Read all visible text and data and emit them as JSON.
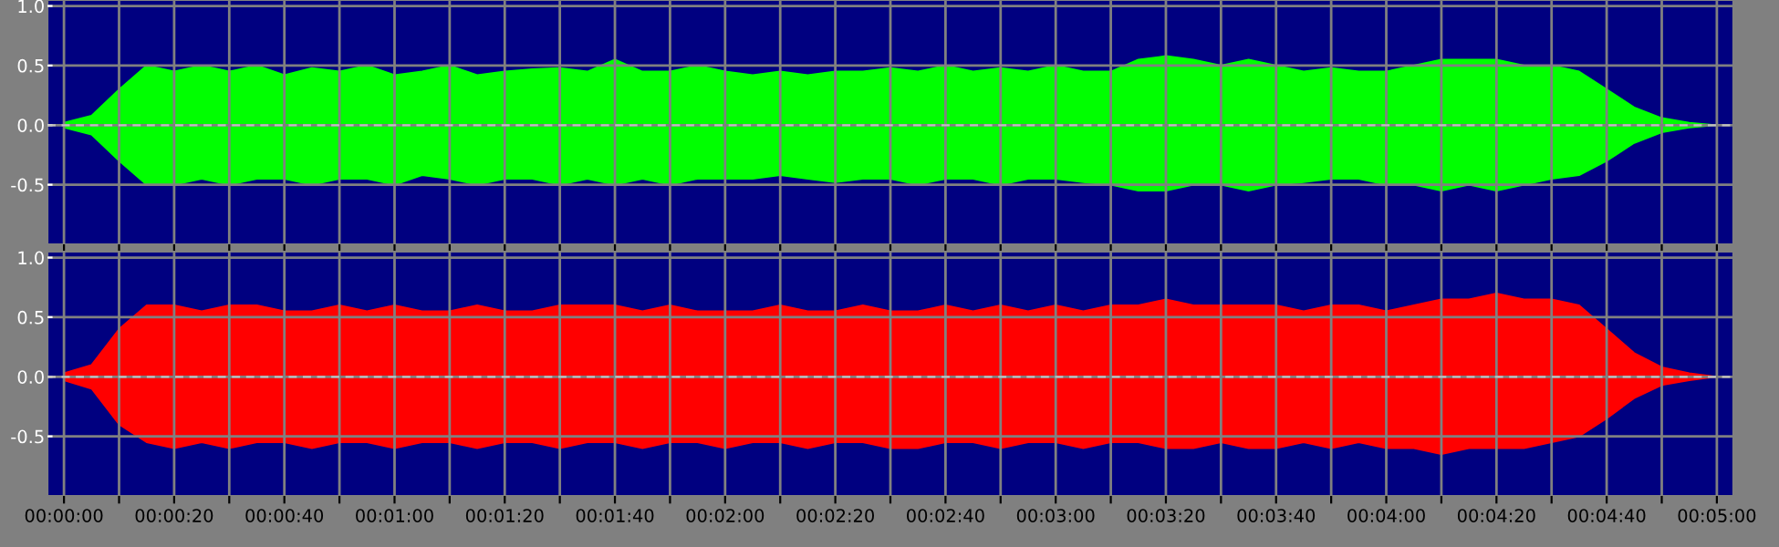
{
  "chart_data": [
    {
      "type": "area",
      "x": [
        0,
        5,
        10,
        15,
        20,
        25,
        30,
        35,
        40,
        45,
        50,
        55,
        60,
        65,
        70,
        75,
        80,
        85,
        90,
        95,
        100,
        105,
        110,
        115,
        120,
        125,
        130,
        135,
        140,
        145,
        150,
        155,
        160,
        165,
        170,
        175,
        180,
        185,
        190,
        195,
        200,
        205,
        210,
        215,
        220,
        225,
        230,
        235,
        240,
        245,
        250,
        255,
        260,
        265,
        270,
        275,
        280,
        285,
        290,
        295,
        300
      ],
      "series": [
        {
          "color": "#00ff00",
          "values": [
            0.02,
            0.08,
            0.3,
            0.5,
            0.45,
            0.5,
            0.45,
            0.5,
            0.42,
            0.48,
            0.45,
            0.5,
            0.42,
            0.45,
            0.5,
            0.42,
            0.45,
            0.47,
            0.48,
            0.45,
            0.55,
            0.45,
            0.45,
            0.5,
            0.45,
            0.42,
            0.45,
            0.42,
            0.45,
            0.45,
            0.48,
            0.45,
            0.5,
            0.45,
            0.48,
            0.45,
            0.5,
            0.45,
            0.45,
            0.55,
            0.58,
            0.55,
            0.5,
            0.55,
            0.5,
            0.45,
            0.48,
            0.45,
            0.45,
            0.5,
            0.55,
            0.55,
            0.55,
            0.5,
            0.5,
            0.45,
            0.3,
            0.15,
            0.06,
            0.02,
            0.0
          ]
        },
        {
          "color": "#00ff00",
          "values": [
            -0.02,
            -0.08,
            -0.3,
            -0.5,
            -0.5,
            -0.45,
            -0.5,
            -0.45,
            -0.45,
            -0.5,
            -0.45,
            -0.45,
            -0.5,
            -0.42,
            -0.45,
            -0.5,
            -0.45,
            -0.45,
            -0.5,
            -0.45,
            -0.5,
            -0.45,
            -0.5,
            -0.45,
            -0.45,
            -0.45,
            -0.42,
            -0.45,
            -0.48,
            -0.45,
            -0.45,
            -0.5,
            -0.45,
            -0.45,
            -0.5,
            -0.45,
            -0.45,
            -0.48,
            -0.5,
            -0.55,
            -0.55,
            -0.5,
            -0.5,
            -0.55,
            -0.5,
            -0.48,
            -0.45,
            -0.45,
            -0.5,
            -0.5,
            -0.55,
            -0.5,
            -0.55,
            -0.5,
            -0.45,
            -0.42,
            -0.3,
            -0.15,
            -0.06,
            -0.02,
            0.0
          ]
        }
      ],
      "xlim": [
        -3,
        303
      ],
      "ylim": [
        -1.0,
        1.05
      ],
      "yticks": [
        {
          "value": -0.5,
          "label": "-0.5"
        },
        {
          "value": 0,
          "label": "0.0"
        },
        {
          "value": 0.5,
          "label": "0.5"
        },
        {
          "value": 1,
          "label": "1.0"
        }
      ],
      "xticks": [
        {
          "value": 0,
          "label": null
        },
        {
          "value": 10,
          "label": null
        },
        {
          "value": 20,
          "label": null
        },
        {
          "value": 30,
          "label": null
        },
        {
          "value": 40,
          "label": null
        },
        {
          "value": 50,
          "label": null
        },
        {
          "value": 60,
          "label": null
        },
        {
          "value": 70,
          "label": null
        },
        {
          "value": 80,
          "label": null
        },
        {
          "value": 90,
          "label": null
        },
        {
          "value": 100,
          "label": null
        },
        {
          "value": 110,
          "label": null
        },
        {
          "value": 120,
          "label": null
        },
        {
          "value": 130,
          "label": null
        },
        {
          "value": 140,
          "label": null
        },
        {
          "value": 150,
          "label": null
        },
        {
          "value": 160,
          "label": null
        },
        {
          "value": 170,
          "label": null
        },
        {
          "value": 180,
          "label": null
        },
        {
          "value": 190,
          "label": null
        },
        {
          "value": 200,
          "label": null
        },
        {
          "value": 210,
          "label": null
        },
        {
          "value": 220,
          "label": null
        },
        {
          "value": 230,
          "label": null
        },
        {
          "value": 240,
          "label": null
        },
        {
          "value": 250,
          "label": null
        },
        {
          "value": 260,
          "label": null
        },
        {
          "value": 270,
          "label": null
        },
        {
          "value": 280,
          "label": null
        },
        {
          "value": 290,
          "label": null
        },
        {
          "value": 300,
          "label": null
        }
      ],
      "grid": true,
      "tick_labels": "y",
      "ref_lines": [
        {
          "axis": "y",
          "value": 0,
          "color": "#c0c0c0",
          "line_style": "dashed"
        }
      ]
    },
    {
      "type": "area",
      "x": [
        0,
        5,
        10,
        15,
        20,
        25,
        30,
        35,
        40,
        45,
        50,
        55,
        60,
        65,
        70,
        75,
        80,
        85,
        90,
        95,
        100,
        105,
        110,
        115,
        120,
        125,
        130,
        135,
        140,
        145,
        150,
        155,
        160,
        165,
        170,
        175,
        180,
        185,
        190,
        195,
        200,
        205,
        210,
        215,
        220,
        225,
        230,
        235,
        240,
        245,
        250,
        255,
        260,
        265,
        270,
        275,
        280,
        285,
        290,
        295,
        300
      ],
      "series": [
        {
          "color": "#ff0000",
          "values": [
            0.03,
            0.1,
            0.4,
            0.6,
            0.6,
            0.55,
            0.6,
            0.6,
            0.55,
            0.55,
            0.6,
            0.55,
            0.6,
            0.55,
            0.55,
            0.6,
            0.55,
            0.55,
            0.6,
            0.6,
            0.6,
            0.55,
            0.6,
            0.55,
            0.55,
            0.55,
            0.6,
            0.55,
            0.55,
            0.6,
            0.55,
            0.55,
            0.6,
            0.55,
            0.6,
            0.55,
            0.6,
            0.55,
            0.6,
            0.6,
            0.65,
            0.6,
            0.6,
            0.6,
            0.6,
            0.55,
            0.6,
            0.6,
            0.55,
            0.6,
            0.65,
            0.65,
            0.7,
            0.65,
            0.65,
            0.6,
            0.4,
            0.2,
            0.08,
            0.03,
            0.0
          ]
        },
        {
          "color": "#ff0000",
          "values": [
            -0.03,
            -0.1,
            -0.4,
            -0.55,
            -0.6,
            -0.55,
            -0.6,
            -0.55,
            -0.55,
            -0.6,
            -0.55,
            -0.55,
            -0.6,
            -0.55,
            -0.55,
            -0.6,
            -0.55,
            -0.55,
            -0.6,
            -0.55,
            -0.55,
            -0.6,
            -0.55,
            -0.55,
            -0.6,
            -0.55,
            -0.55,
            -0.6,
            -0.55,
            -0.55,
            -0.6,
            -0.6,
            -0.55,
            -0.55,
            -0.6,
            -0.55,
            -0.55,
            -0.6,
            -0.55,
            -0.55,
            -0.6,
            -0.6,
            -0.55,
            -0.6,
            -0.6,
            -0.55,
            -0.6,
            -0.55,
            -0.6,
            -0.6,
            -0.65,
            -0.6,
            -0.6,
            -0.6,
            -0.55,
            -0.5,
            -0.35,
            -0.18,
            -0.07,
            -0.03,
            0.0
          ]
        }
      ],
      "xlim": [
        -3,
        303
      ],
      "ylim": [
        -1.0,
        1.05
      ],
      "yticks": [
        {
          "value": -0.5,
          "label": "-0.5"
        },
        {
          "value": 0,
          "label": "0.0"
        },
        {
          "value": 0.5,
          "label": "0.5"
        },
        {
          "value": 1,
          "label": "1.0"
        }
      ],
      "xticks": [
        {
          "value": 0,
          "label": "00:00:00"
        },
        {
          "value": 10,
          "label": null
        },
        {
          "value": 20,
          "label": "00:00:20"
        },
        {
          "value": 30,
          "label": null
        },
        {
          "value": 40,
          "label": "00:00:40"
        },
        {
          "value": 50,
          "label": null
        },
        {
          "value": 60,
          "label": "00:01:00"
        },
        {
          "value": 70,
          "label": null
        },
        {
          "value": 80,
          "label": "00:01:20"
        },
        {
          "value": 90,
          "label": null
        },
        {
          "value": 100,
          "label": "00:01:40"
        },
        {
          "value": 110,
          "label": null
        },
        {
          "value": 120,
          "label": "00:02:00"
        },
        {
          "value": 130,
          "label": null
        },
        {
          "value": 140,
          "label": "00:02:20"
        },
        {
          "value": 150,
          "label": null
        },
        {
          "value": 160,
          "label": "00:02:40"
        },
        {
          "value": 170,
          "label": null
        },
        {
          "value": 180,
          "label": "00:03:00"
        },
        {
          "value": 190,
          "label": null
        },
        {
          "value": 200,
          "label": "00:03:20"
        },
        {
          "value": 210,
          "label": null
        },
        {
          "value": 220,
          "label": "00:03:40"
        },
        {
          "value": 230,
          "label": null
        },
        {
          "value": 240,
          "label": "00:04:00"
        },
        {
          "value": 250,
          "label": null
        },
        {
          "value": 260,
          "label": "00:04:20"
        },
        {
          "value": 270,
          "label": null
        },
        {
          "value": 280,
          "label": "00:04:40"
        },
        {
          "value": 290,
          "label": null
        },
        {
          "value": 300,
          "label": "00:05:00"
        }
      ],
      "grid": true,
      "ref_lines": [
        {
          "axis": "y",
          "value": 0,
          "color": "#c0c0c0",
          "line_style": "dashed"
        }
      ]
    }
  ]
}
